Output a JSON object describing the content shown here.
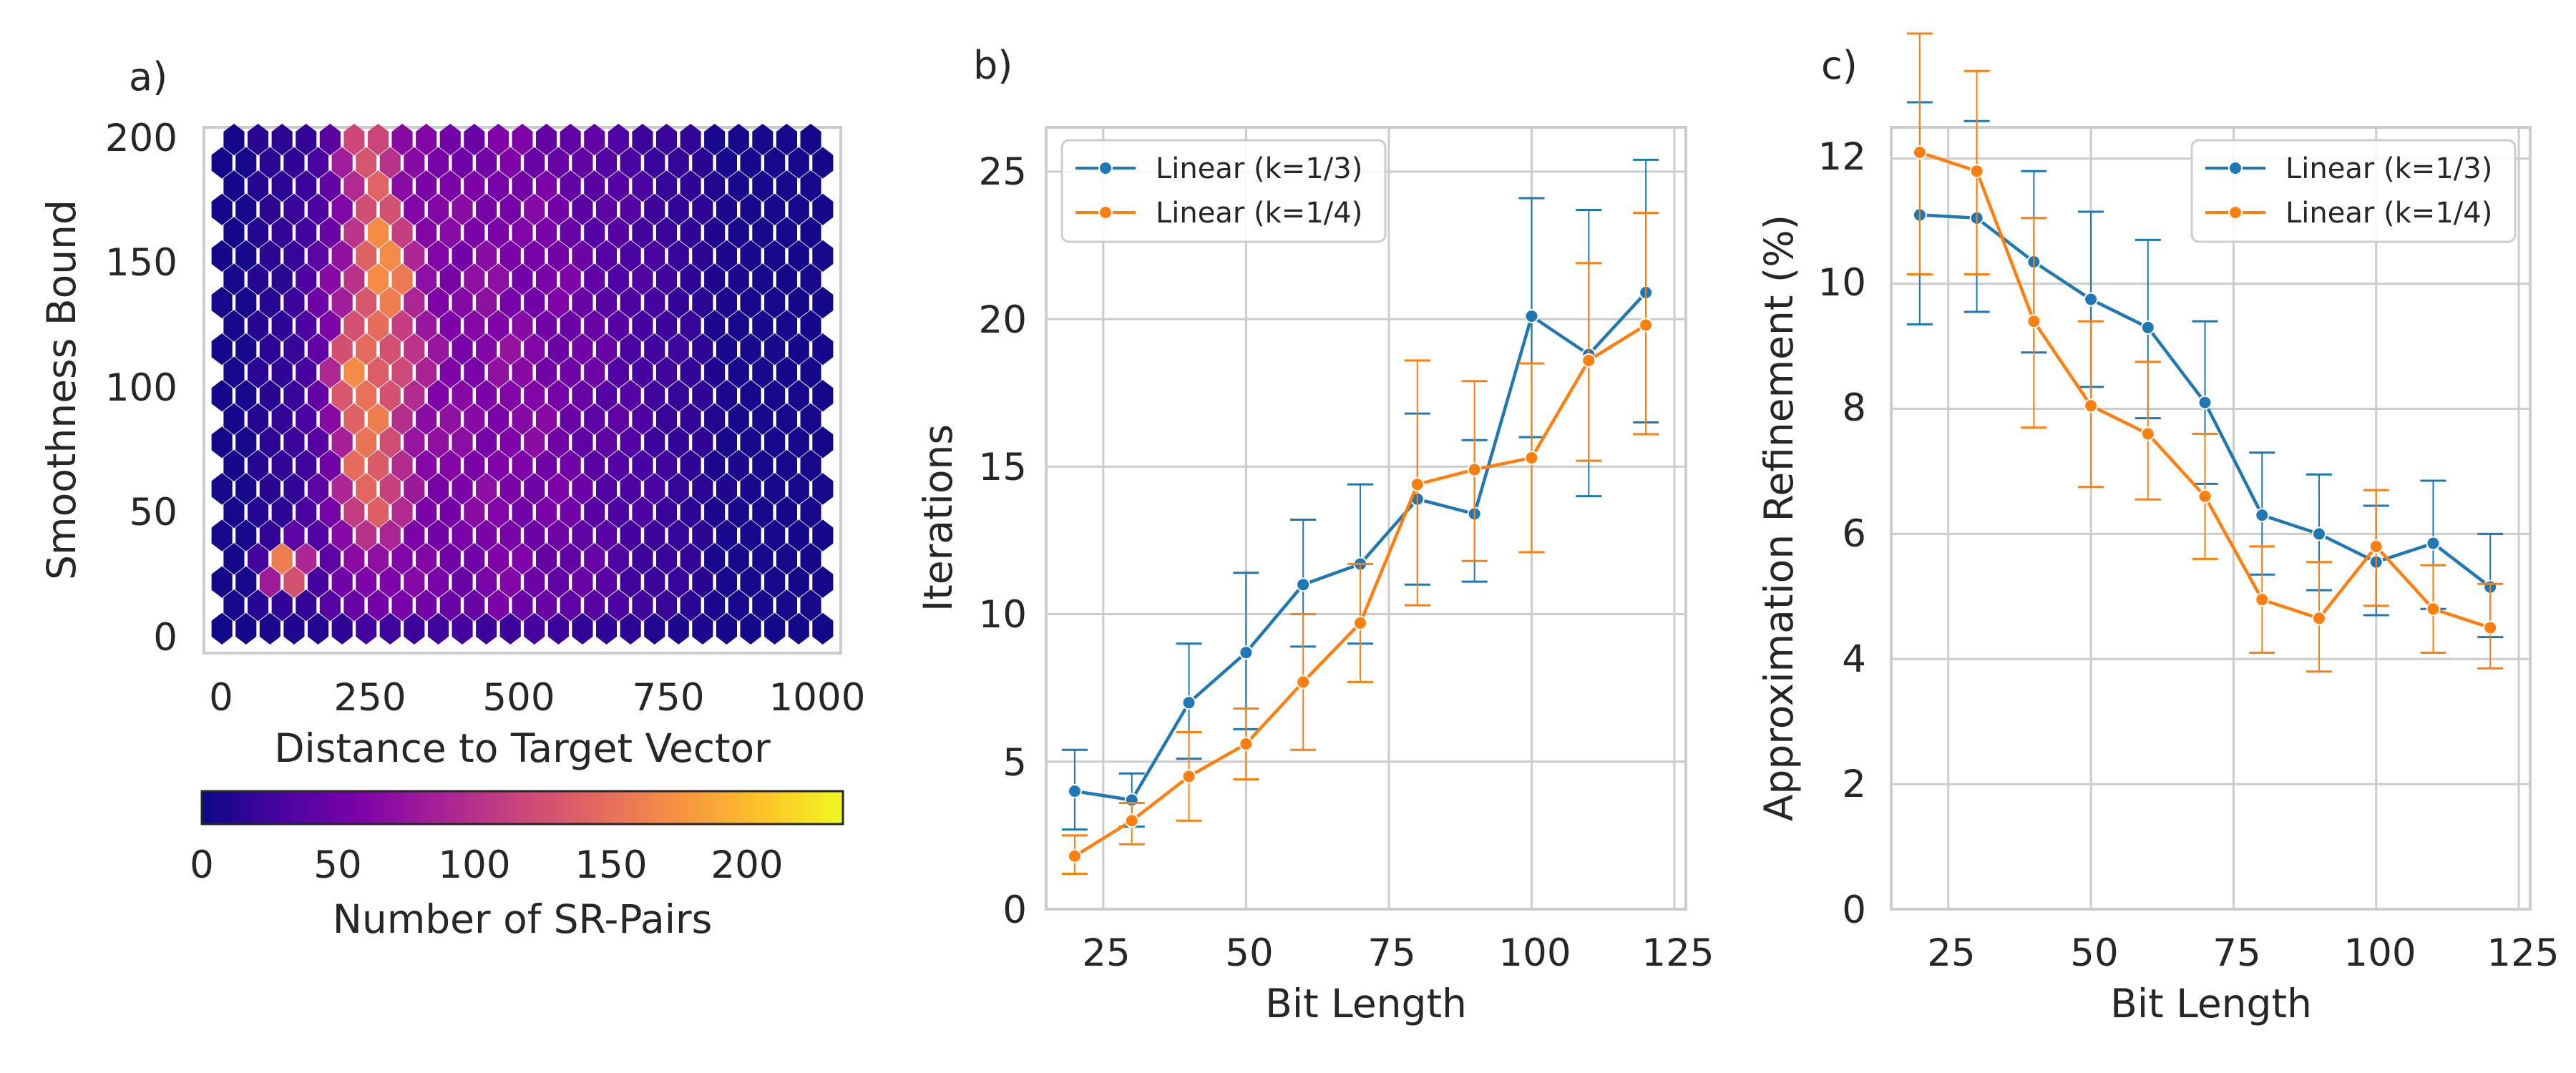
{
  "chart_data": [
    {
      "type": "heatmap",
      "panel_label": "a)",
      "xlabel": "Distance to Target Vector",
      "ylabel": "Smoothness Bound",
      "x_ticks": [
        "0",
        "250",
        "500",
        "750",
        "1000"
      ],
      "y_ticks": [
        "0",
        "50",
        "100",
        "150",
        "200"
      ],
      "xlim": [
        -30,
        1030
      ],
      "ylim": [
        -10,
        205
      ],
      "grid": false,
      "colormap": "plasma",
      "colorbar": {
        "label": "Number of SR-Pairs",
        "ticks": [
          "0",
          "50",
          "100",
          "150",
          "200"
        ],
        "range": [
          0,
          235
        ]
      },
      "hex_grid": {
        "x_range": [
          0,
          1000
        ],
        "y_range": [
          0,
          200
        ],
        "columns": 26,
        "rows": 22
      },
      "density_model": {
        "description": "bin counts peak near distance 200-300 across smoothness 20-180; hot spot near (110, 25)",
        "peaks": [
          {
            "x": 230,
            "y": 100,
            "count": 170
          },
          {
            "x": 270,
            "y": 150,
            "count": 185
          },
          {
            "x": 240,
            "y": 60,
            "count": 165
          },
          {
            "x": 110,
            "y": 25,
            "count": 230
          },
          {
            "x": 250,
            "y": 190,
            "count": 150
          }
        ]
      }
    },
    {
      "type": "line",
      "panel_label": "b)",
      "xlabel": "Bit Length",
      "ylabel": "Iterations",
      "x": [
        20,
        30,
        40,
        50,
        60,
        70,
        80,
        90,
        100,
        110,
        120
      ],
      "xlim": [
        15,
        127
      ],
      "ylim": [
        0,
        26.5
      ],
      "x_ticks": [
        "25",
        "50",
        "75",
        "100",
        "125"
      ],
      "y_ticks": [
        "0",
        "5",
        "10",
        "15",
        "20",
        "25"
      ],
      "grid": true,
      "legend_position": "top-left",
      "series": [
        {
          "name": "Linear (k=1/3)",
          "color": "#1f77b4",
          "values": [
            4.0,
            3.7,
            7.0,
            8.7,
            11.0,
            11.7,
            13.9,
            13.4,
            20.1,
            18.8,
            20.9
          ],
          "err_low": [
            2.7,
            2.8,
            5.1,
            6.1,
            8.9,
            9.0,
            11.0,
            11.1,
            16.0,
            14.0,
            16.5
          ],
          "err_high": [
            5.4,
            4.6,
            9.0,
            11.4,
            13.2,
            14.4,
            16.8,
            15.9,
            24.1,
            23.7,
            25.4
          ]
        },
        {
          "name": "Linear (k=1/4)",
          "color": "#ff7f0e",
          "values": [
            1.8,
            3.0,
            4.5,
            5.6,
            7.7,
            9.7,
            14.4,
            14.9,
            15.3,
            18.6,
            19.8
          ],
          "err_low": [
            1.2,
            2.2,
            3.0,
            4.4,
            5.4,
            7.7,
            10.3,
            11.8,
            12.1,
            15.2,
            16.1
          ],
          "err_high": [
            2.5,
            3.6,
            6.0,
            6.8,
            10.0,
            11.7,
            18.6,
            17.9,
            18.5,
            21.9,
            23.6
          ]
        }
      ]
    },
    {
      "type": "line",
      "panel_label": "c)",
      "xlabel": "Bit Length",
      "ylabel": "Approximation Refinement (%)",
      "x": [
        20,
        30,
        40,
        50,
        60,
        70,
        80,
        90,
        100,
        110,
        120
      ],
      "xlim": [
        15,
        127
      ],
      "ylim": [
        0,
        12.5
      ],
      "x_ticks": [
        "25",
        "50",
        "75",
        "100",
        "125"
      ],
      "y_ticks": [
        "0",
        "2",
        "4",
        "6",
        "8",
        "10",
        "12"
      ],
      "grid": true,
      "legend_position": "top-right",
      "series": [
        {
          "name": "Linear (k=1/3)",
          "color": "#1f77b4",
          "values": [
            11.1,
            11.05,
            10.35,
            9.75,
            9.3,
            8.1,
            6.3,
            6.0,
            5.55,
            5.85,
            5.15
          ],
          "err_low": [
            9.35,
            9.55,
            8.9,
            8.35,
            7.85,
            6.8,
            5.35,
            5.1,
            4.7,
            4.8,
            4.35
          ],
          "err_high": [
            12.9,
            12.6,
            11.8,
            11.15,
            10.7,
            9.4,
            7.3,
            6.95,
            6.45,
            6.85,
            6.0
          ]
        },
        {
          "name": "Linear (k=1/4)",
          "color": "#ff7f0e",
          "values": [
            12.1,
            11.8,
            9.4,
            8.05,
            7.6,
            6.6,
            4.95,
            4.65,
            5.8,
            4.8,
            4.5
          ],
          "err_low": [
            10.15,
            10.15,
            7.7,
            6.75,
            6.55,
            5.6,
            4.1,
            3.8,
            4.85,
            4.1,
            3.85
          ],
          "err_high": [
            14.0,
            13.4,
            11.05,
            9.4,
            8.75,
            7.6,
            5.8,
            5.55,
            6.7,
            5.5,
            5.2
          ]
        }
      ]
    }
  ]
}
